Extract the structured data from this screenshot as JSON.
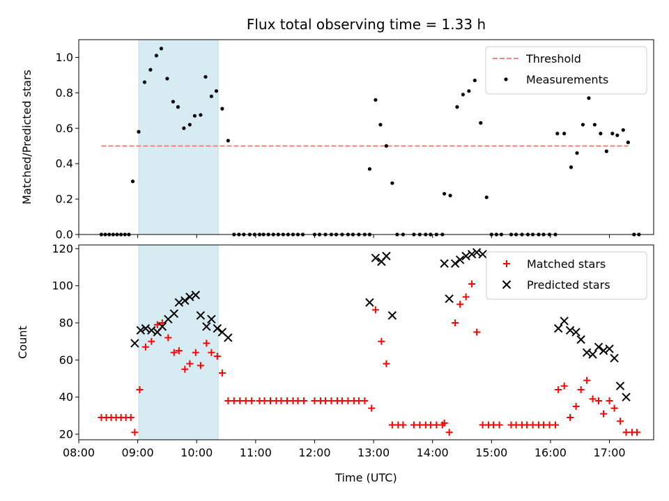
{
  "chart_data": [
    {
      "type": "scatter",
      "title": "Flux total observing time = 1.33 h",
      "xlabel": "",
      "ylabel": "Matched/Predicted stars",
      "xlim": [
        "08:00",
        "17:45"
      ],
      "ylim": [
        0,
        1.1
      ],
      "yticks": [
        "0.0",
        "0.2",
        "0.4",
        "0.6",
        "0.8",
        "1.0"
      ],
      "xtick_labels_shown": false,
      "highlight_span": {
        "start": "09:01",
        "end": "10:22",
        "color": "#add8e6"
      },
      "threshold": {
        "label": "Threshold",
        "value": 0.5,
        "x_start": "08:23",
        "x_end": "17:19",
        "color": "#ff7f7f",
        "style": "dashed"
      },
      "legend": {
        "position": "top-right",
        "entries": [
          "Threshold",
          "Measurements"
        ]
      },
      "series": [
        {
          "name": "Measurements",
          "color": "#000000",
          "marker": "dot",
          "points": [
            [
              "08:23",
              0
            ],
            [
              "08:27",
              0
            ],
            [
              "08:31",
              0
            ],
            [
              "08:35",
              0
            ],
            [
              "08:39",
              0
            ],
            [
              "08:43",
              0
            ],
            [
              "08:47",
              0
            ],
            [
              "08:51",
              0
            ],
            [
              "08:55",
              0.3
            ],
            [
              "09:01",
              0.58
            ],
            [
              "09:07",
              0.86
            ],
            [
              "09:13",
              0.93
            ],
            [
              "09:19",
              1.01
            ],
            [
              "09:24",
              1.05
            ],
            [
              "09:30",
              0.88
            ],
            [
              "09:36",
              0.75
            ],
            [
              "09:41",
              0.72
            ],
            [
              "09:47",
              0.6
            ],
            [
              "09:53",
              0.62
            ],
            [
              "09:58",
              0.67
            ],
            [
              "10:04",
              0.675
            ],
            [
              "10:09",
              0.89
            ],
            [
              "10:15",
              0.78
            ],
            [
              "10:20",
              0.81
            ],
            [
              "10:26",
              0.71
            ],
            [
              "10:32",
              0.53
            ],
            [
              "10:38",
              0
            ],
            [
              "10:43",
              0
            ],
            [
              "10:48",
              0
            ],
            [
              "10:54",
              0
            ],
            [
              "10:59",
              0
            ],
            [
              "11:04",
              0
            ],
            [
              "11:08",
              0
            ],
            [
              "11:13",
              0
            ],
            [
              "11:18",
              0
            ],
            [
              "11:23",
              0
            ],
            [
              "11:28",
              0
            ],
            [
              "11:33",
              0
            ],
            [
              "11:38",
              0
            ],
            [
              "11:43",
              0
            ],
            [
              "11:48",
              0
            ],
            [
              "12:00",
              0
            ],
            [
              "12:05",
              0
            ],
            [
              "12:11",
              0
            ],
            [
              "12:17",
              0
            ],
            [
              "12:22",
              0
            ],
            [
              "12:28",
              0
            ],
            [
              "12:34",
              0
            ],
            [
              "12:39",
              0
            ],
            [
              "12:45",
              0
            ],
            [
              "12:51",
              0
            ],
            [
              "12:56",
              0
            ],
            [
              "12:56",
              0.37
            ],
            [
              "13:02",
              0.76
            ],
            [
              "13:07",
              0.62
            ],
            [
              "13:13",
              0.5
            ],
            [
              "13:19",
              0.29
            ],
            [
              "13:24",
              0
            ],
            [
              "13:30",
              0
            ],
            [
              "13:41",
              0
            ],
            [
              "13:47",
              0
            ],
            [
              "13:53",
              0
            ],
            [
              "13:58",
              0
            ],
            [
              "14:04",
              0
            ],
            [
              "14:10",
              0
            ],
            [
              "14:12",
              0.23
            ],
            [
              "14:18",
              0.22
            ],
            [
              "14:25",
              0.72
            ],
            [
              "14:31",
              0.79
            ],
            [
              "14:37",
              0.81
            ],
            [
              "14:43",
              0.87
            ],
            [
              "14:49",
              0.63
            ],
            [
              "14:55",
              0.21
            ],
            [
              "15:00",
              0
            ],
            [
              "15:05",
              0
            ],
            [
              "15:10",
              0
            ],
            [
              "15:20",
              0
            ],
            [
              "15:25",
              0
            ],
            [
              "15:31",
              0
            ],
            [
              "15:37",
              0
            ],
            [
              "15:42",
              0
            ],
            [
              "15:48",
              0
            ],
            [
              "15:53",
              0
            ],
            [
              "15:59",
              0
            ],
            [
              "16:05",
              0
            ],
            [
              "16:07",
              0.57
            ],
            [
              "16:14",
              0.57
            ],
            [
              "16:21",
              0.38
            ],
            [
              "16:27",
              0.46
            ],
            [
              "16:33",
              0.62
            ],
            [
              "16:39",
              0.77
            ],
            [
              "16:45",
              0.62
            ],
            [
              "16:51",
              0.57
            ],
            [
              "16:57",
              0.47
            ],
            [
              "17:03",
              0.57
            ],
            [
              "17:08",
              0.56
            ],
            [
              "17:14",
              0.59
            ],
            [
              "17:19",
              0.52
            ],
            [
              "17:25",
              0
            ],
            [
              "17:30",
              0
            ]
          ]
        }
      ]
    },
    {
      "type": "scatter",
      "title": "",
      "xlabel": "Time (UTC)",
      "ylabel": "Count",
      "xlim": [
        "08:00",
        "17:45"
      ],
      "ylim": [
        17,
        122
      ],
      "xticks": [
        "08:00",
        "09:00",
        "10:00",
        "11:00",
        "12:00",
        "13:00",
        "14:00",
        "15:00",
        "16:00",
        "17:00"
      ],
      "yticks": [
        "20",
        "40",
        "60",
        "80",
        "100",
        "120"
      ],
      "highlight_span": {
        "start": "09:01",
        "end": "10:22",
        "color": "#add8e6"
      },
      "legend": {
        "position": "top-right",
        "entries": [
          "Matched stars",
          "Predicted stars"
        ]
      },
      "series": [
        {
          "name": "Matched stars",
          "color": "#ff0000",
          "marker": "plus",
          "points": [
            [
              "08:23",
              29
            ],
            [
              "08:28",
              29
            ],
            [
              "08:33",
              29
            ],
            [
              "08:38",
              29
            ],
            [
              "08:43",
              29
            ],
            [
              "08:48",
              29
            ],
            [
              "08:53",
              29
            ],
            [
              "08:57",
              21
            ],
            [
              "09:02",
              44
            ],
            [
              "09:08",
              67
            ],
            [
              "09:14",
              70
            ],
            [
              "09:20",
              79
            ],
            [
              "09:25",
              80
            ],
            [
              "09:31",
              72
            ],
            [
              "09:37",
              64
            ],
            [
              "09:42",
              65
            ],
            [
              "09:48",
              55
            ],
            [
              "09:53",
              58
            ],
            [
              "09:59",
              64
            ],
            [
              "10:04",
              57
            ],
            [
              "10:10",
              69
            ],
            [
              "10:15",
              64
            ],
            [
              "10:21",
              62
            ],
            [
              "10:26",
              53
            ],
            [
              "10:32",
              38
            ],
            [
              "10:38",
              38
            ],
            [
              "10:44",
              38
            ],
            [
              "10:50",
              38
            ],
            [
              "10:56",
              38
            ],
            [
              "11:04",
              38
            ],
            [
              "11:09",
              38
            ],
            [
              "11:15",
              38
            ],
            [
              "11:21",
              38
            ],
            [
              "11:26",
              38
            ],
            [
              "11:32",
              38
            ],
            [
              "11:38",
              38
            ],
            [
              "11:43",
              38
            ],
            [
              "11:49",
              38
            ],
            [
              "12:00",
              38
            ],
            [
              "12:06",
              38
            ],
            [
              "12:11",
              38
            ],
            [
              "12:17",
              38
            ],
            [
              "12:23",
              38
            ],
            [
              "12:28",
              38
            ],
            [
              "12:34",
              38
            ],
            [
              "12:40",
              38
            ],
            [
              "12:45",
              38
            ],
            [
              "12:51",
              38
            ],
            [
              "12:58",
              34
            ],
            [
              "13:02",
              87
            ],
            [
              "13:08",
              70
            ],
            [
              "13:13",
              58
            ],
            [
              "13:19",
              25
            ],
            [
              "13:25",
              25
            ],
            [
              "13:30",
              25
            ],
            [
              "13:41",
              25
            ],
            [
              "13:47",
              25
            ],
            [
              "13:53",
              25
            ],
            [
              "13:58",
              25
            ],
            [
              "14:04",
              25
            ],
            [
              "14:10",
              25
            ],
            [
              "14:12",
              26
            ],
            [
              "14:17",
              21
            ],
            [
              "14:23",
              80
            ],
            [
              "14:28",
              90
            ],
            [
              "14:34",
              94
            ],
            [
              "14:40",
              101
            ],
            [
              "14:45",
              75
            ],
            [
              "14:51",
              25
            ],
            [
              "14:57",
              25
            ],
            [
              "15:02",
              25
            ],
            [
              "15:08",
              25
            ],
            [
              "15:20",
              25
            ],
            [
              "15:25",
              25
            ],
            [
              "15:31",
              25
            ],
            [
              "15:36",
              25
            ],
            [
              "15:42",
              25
            ],
            [
              "15:48",
              25
            ],
            [
              "15:53",
              25
            ],
            [
              "15:59",
              25
            ],
            [
              "16:05",
              25
            ],
            [
              "16:08",
              44
            ],
            [
              "16:14",
              46
            ],
            [
              "16:20",
              29
            ],
            [
              "16:26",
              35
            ],
            [
              "16:31",
              44
            ],
            [
              "16:37",
              49
            ],
            [
              "16:43",
              39
            ],
            [
              "16:49",
              38
            ],
            [
              "16:54",
              31
            ],
            [
              "17:00",
              38
            ],
            [
              "17:05",
              34
            ],
            [
              "17:11",
              27
            ],
            [
              "17:17",
              21
            ],
            [
              "17:23",
              21
            ],
            [
              "17:28",
              21
            ]
          ]
        },
        {
          "name": "Predicted stars",
          "color": "#000000",
          "marker": "x",
          "points": [
            [
              "08:57",
              69
            ],
            [
              "09:03",
              76
            ],
            [
              "09:08",
              77
            ],
            [
              "09:14",
              76
            ],
            [
              "09:20",
              75
            ],
            [
              "09:25",
              78
            ],
            [
              "09:31",
              82
            ],
            [
              "09:37",
              85
            ],
            [
              "09:42",
              91
            ],
            [
              "09:48",
              92
            ],
            [
              "09:53",
              94
            ],
            [
              "09:59",
              95
            ],
            [
              "10:04",
              84
            ],
            [
              "10:10",
              78
            ],
            [
              "10:15",
              82
            ],
            [
              "10:21",
              77
            ],
            [
              "10:26",
              75
            ],
            [
              "10:32",
              72
            ],
            [
              "12:56",
              91
            ],
            [
              "13:02",
              115
            ],
            [
              "13:08",
              113
            ],
            [
              "13:13",
              116
            ],
            [
              "13:19",
              84
            ],
            [
              "14:12",
              112
            ],
            [
              "14:17",
              93
            ],
            [
              "14:23",
              112
            ],
            [
              "14:28",
              114
            ],
            [
              "14:34",
              116
            ],
            [
              "14:40",
              117
            ],
            [
              "14:45",
              118
            ],
            [
              "14:51",
              117
            ],
            [
              "16:08",
              77
            ],
            [
              "16:14",
              81
            ],
            [
              "16:20",
              76
            ],
            [
              "16:26",
              75
            ],
            [
              "16:31",
              71
            ],
            [
              "16:37",
              64
            ],
            [
              "16:43",
              63
            ],
            [
              "16:49",
              67
            ],
            [
              "16:54",
              65
            ],
            [
              "17:00",
              66
            ],
            [
              "17:05",
              61
            ],
            [
              "17:11",
              46
            ],
            [
              "17:17",
              40
            ]
          ]
        }
      ]
    }
  ]
}
